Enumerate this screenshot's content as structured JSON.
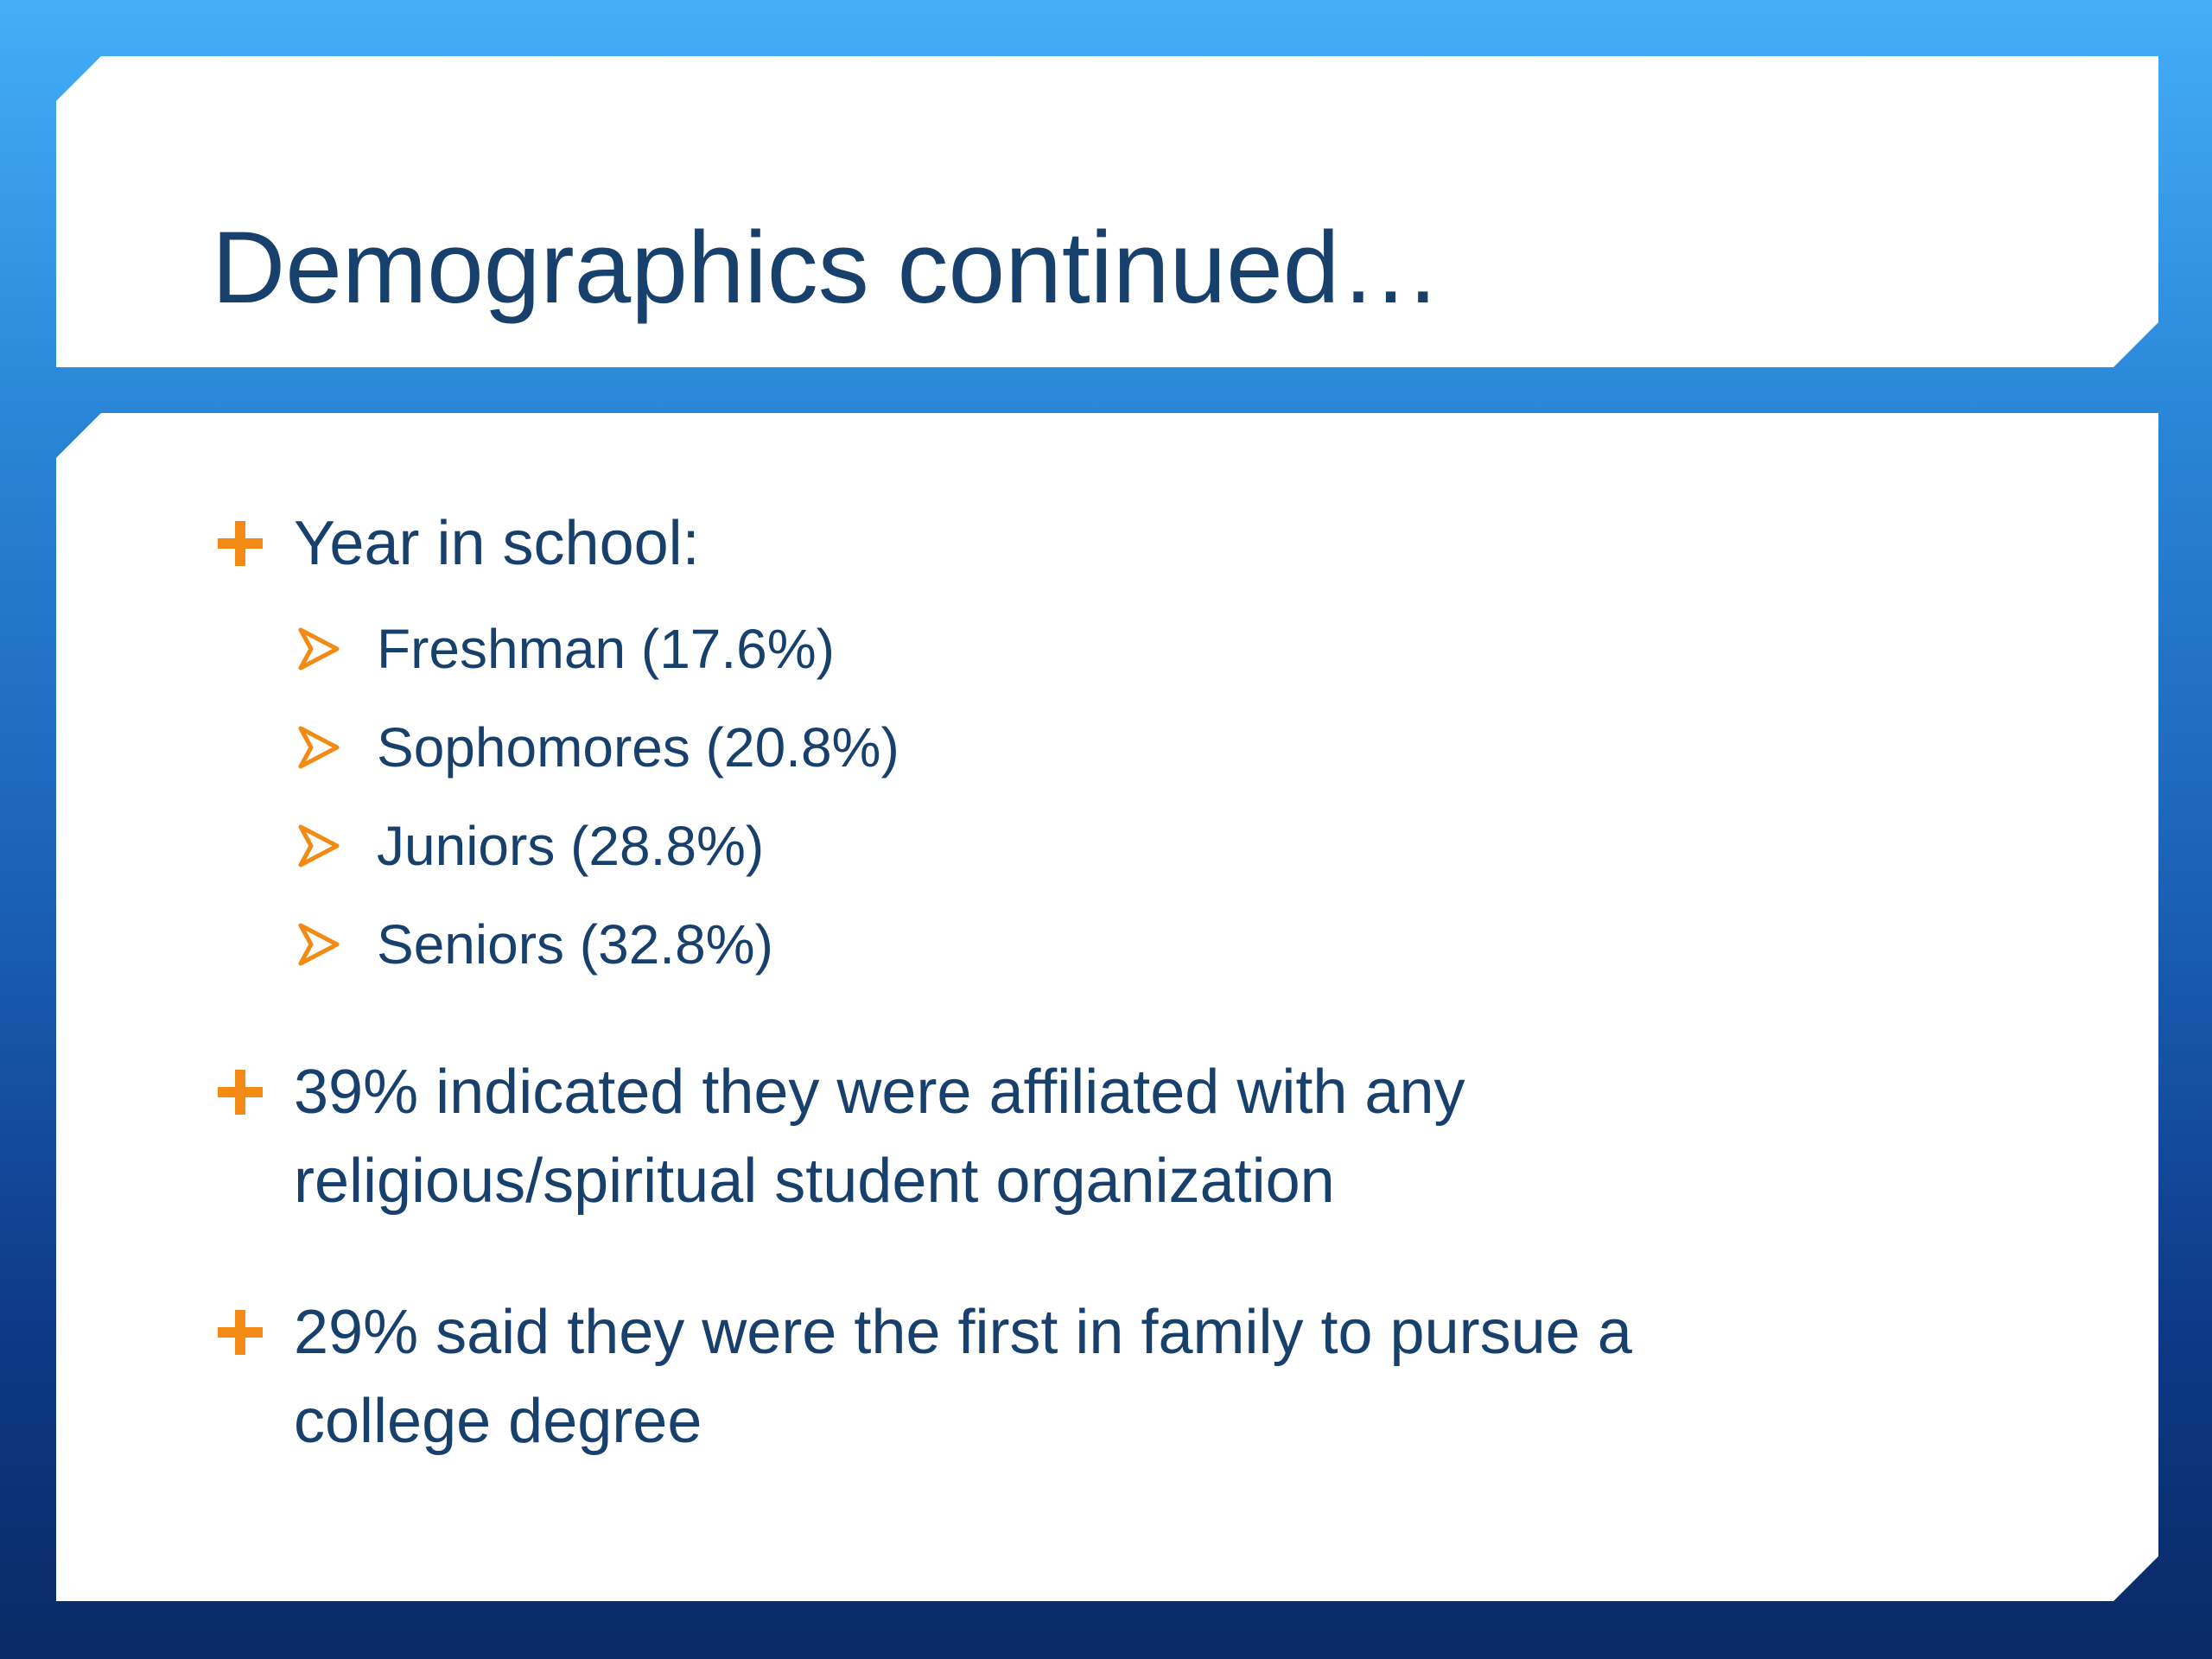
{
  "title": "Demographics continued…",
  "bullets": [
    {
      "lines": [
        "Year in school:"
      ],
      "items": [
        "Freshman (17.6%)",
        "Sophomores (20.8%)",
        "Juniors (28.8%)",
        "Seniors (32.8%)"
      ]
    },
    {
      "lines": [
        "39% indicated they were affiliated with any",
        "religious/spiritual student organization"
      ]
    },
    {
      "lines": [
        "29% said they were the first in family to pursue a",
        "college degree"
      ]
    }
  ]
}
